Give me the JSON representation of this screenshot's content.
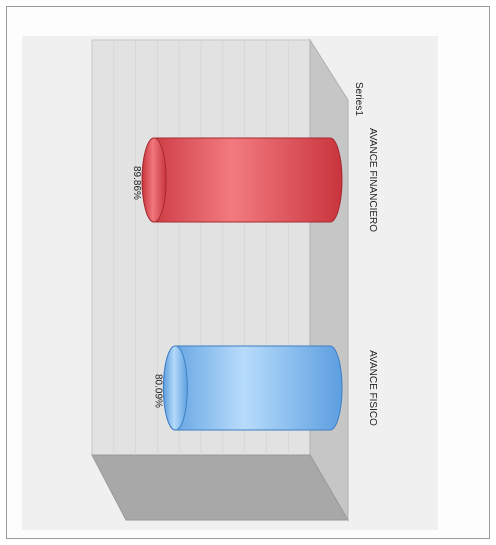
{
  "chart_data": {
    "type": "bar",
    "orientation": "rotated 90 degrees clockwise (3D cylinder)",
    "categories": [
      "AVANCE FISICO",
      "AVANCE FINANCIERO"
    ],
    "series": [
      {
        "name": "Series1",
        "values": [
          80.09,
          89.86
        ]
      }
    ],
    "data_labels": [
      "80.09%",
      "89.86%"
    ],
    "legend": "top-right",
    "grid": true,
    "colors": {
      "AVANCE FISICO": "#8cc3f5",
      "AVANCE FINANCIERO": "#e8555b",
      "back_wall": "#e4e4e4",
      "floor": "#a9a9a9"
    }
  }
}
